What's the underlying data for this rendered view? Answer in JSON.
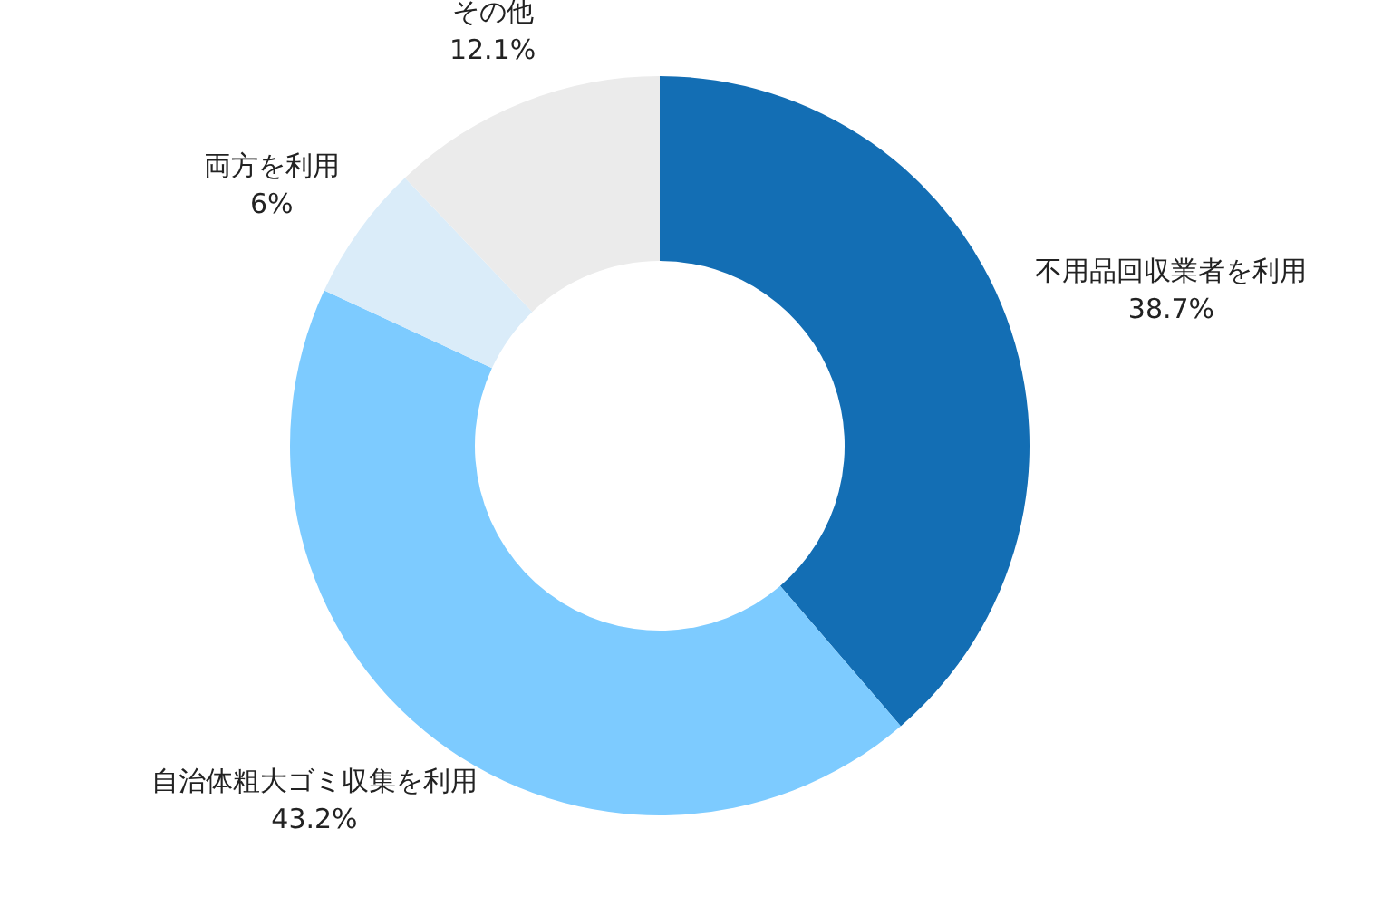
{
  "chart_data": {
    "type": "donut",
    "categories": [
      "不用品回収業者を利用",
      "自治体粗大ゴミ収集を利用",
      "両方を利用",
      "その他"
    ],
    "values": [
      38.7,
      43.2,
      6,
      12.1
    ],
    "value_labels": [
      "38.7%",
      "43.2%",
      "6%",
      "12.1%"
    ],
    "colors": [
      "#136eb4",
      "#7dcbff",
      "#daecf9",
      "#ebebeb"
    ],
    "legend": false
  }
}
